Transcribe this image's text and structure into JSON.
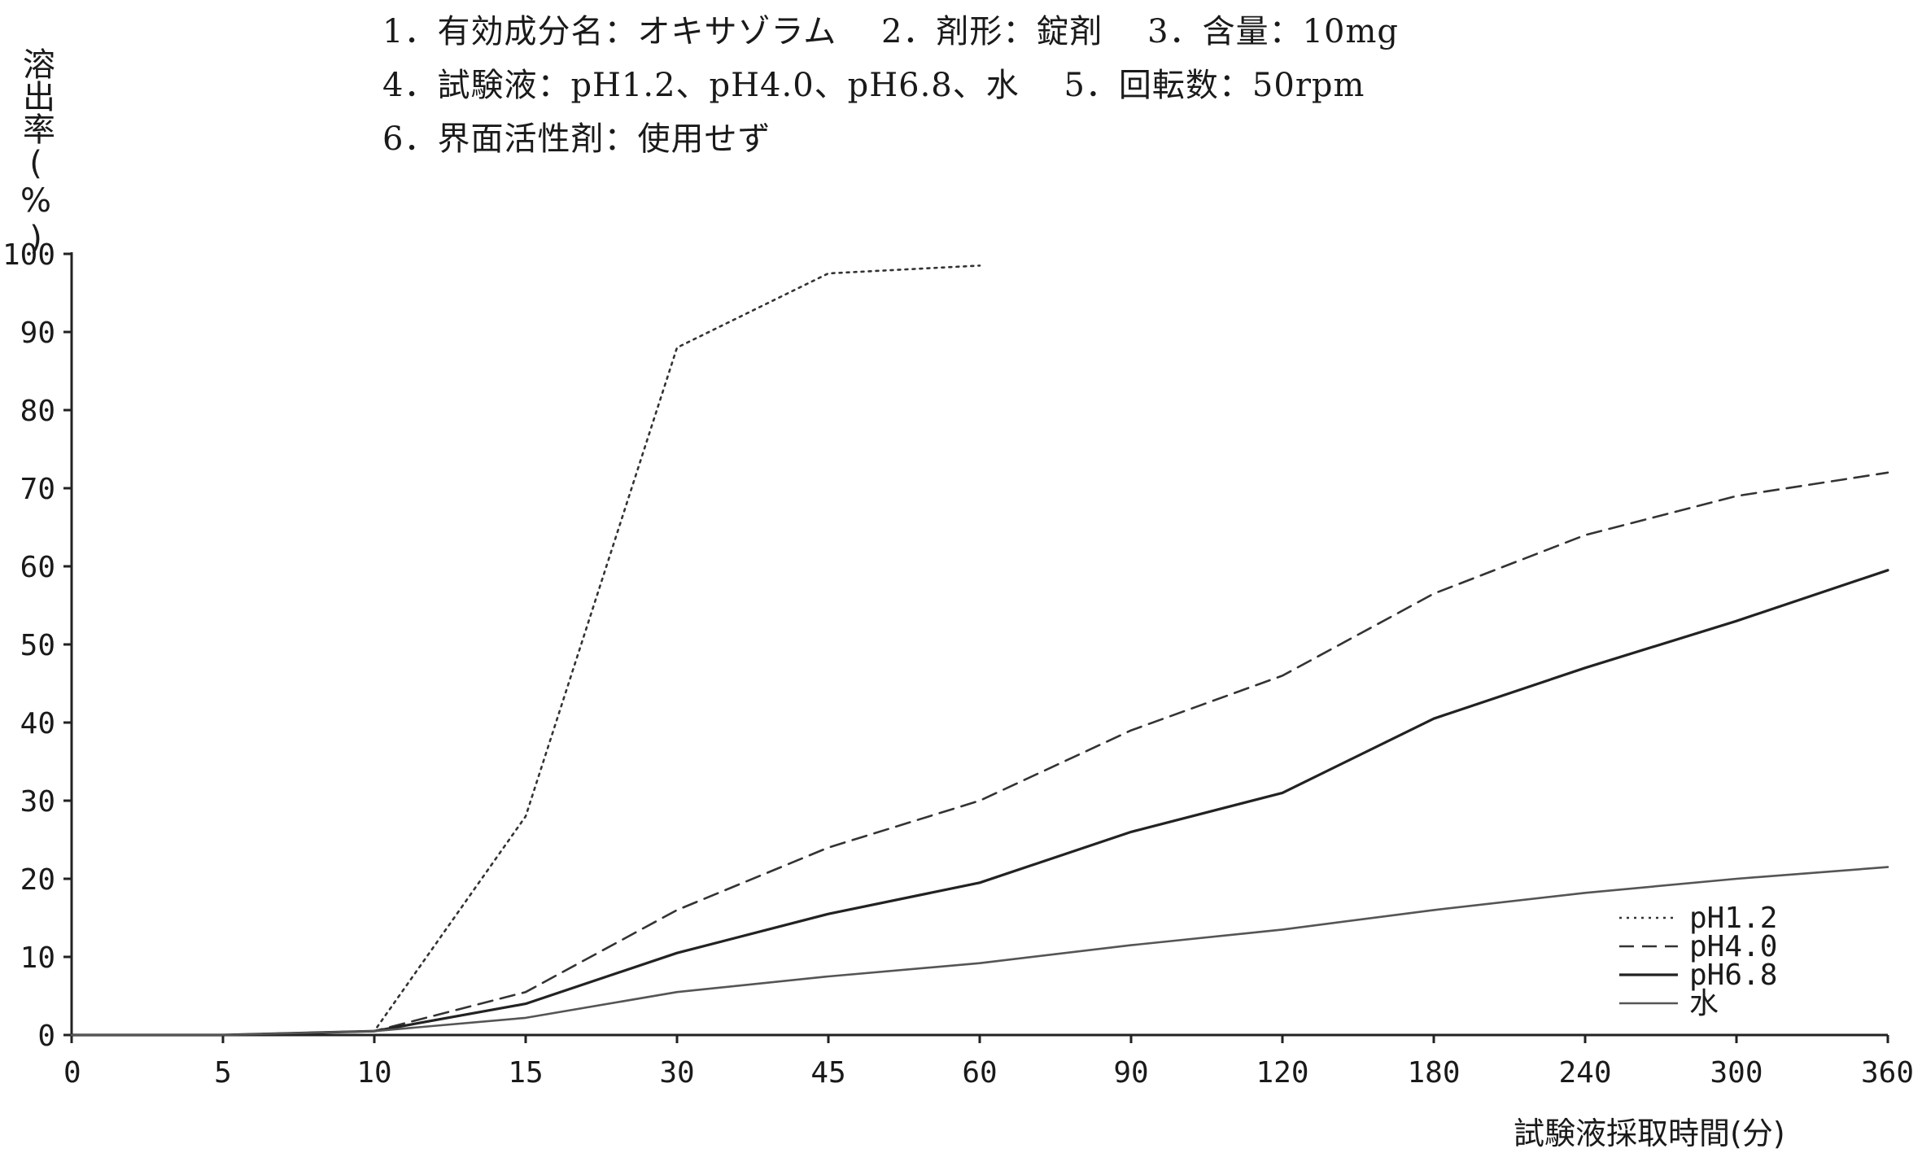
{
  "header": {
    "line1": "1．有効成分名：オキサゾラム　 2．剤形：錠剤　 3．含量：10mg",
    "line2": "4．試験液：pH1.2、pH4.0、pH6.8、水　 5．回転数：50rpm",
    "line3": "6．界面活性剤：使用せず"
  },
  "chart_data": {
    "type": "line",
    "xlabel": "試験液採取時間(分)",
    "ylabel": "溶出率(%)",
    "categories": [
      "0",
      "5",
      "10",
      "15",
      "30",
      "45",
      "60",
      "90",
      "120",
      "180",
      "240",
      "300",
      "360"
    ],
    "yticks": [
      "0",
      "10",
      "20",
      "30",
      "40",
      "50",
      "60",
      "70",
      "80",
      "90",
      "100"
    ],
    "ylim": [
      0,
      100
    ],
    "grid": false,
    "legend_position": "bottom-right",
    "series": [
      {
        "name": "pH1.2",
        "style": "dotted",
        "color": "#333333",
        "values": [
          0,
          0,
          0.5,
          28,
          88,
          97.5,
          98.5,
          null,
          null,
          null,
          null,
          null,
          null
        ]
      },
      {
        "name": "pH4.0",
        "style": "dashed",
        "color": "#333333",
        "values": [
          0,
          0,
          0.5,
          5.5,
          16,
          24,
          30,
          39,
          46,
          56.5,
          64,
          69,
          72
        ]
      },
      {
        "name": "pH6.8",
        "style": "solid",
        "color": "#222222",
        "values": [
          0,
          0,
          0.5,
          4,
          10.5,
          15.5,
          19.5,
          26,
          31,
          40.5,
          47,
          53,
          59.5
        ]
      },
      {
        "name": "水",
        "style": "solid",
        "color": "#555555",
        "values": [
          0,
          0,
          0.5,
          2.2,
          5.5,
          7.5,
          9.2,
          11.5,
          13.5,
          16,
          18.2,
          20,
          21.5
        ]
      }
    ]
  }
}
